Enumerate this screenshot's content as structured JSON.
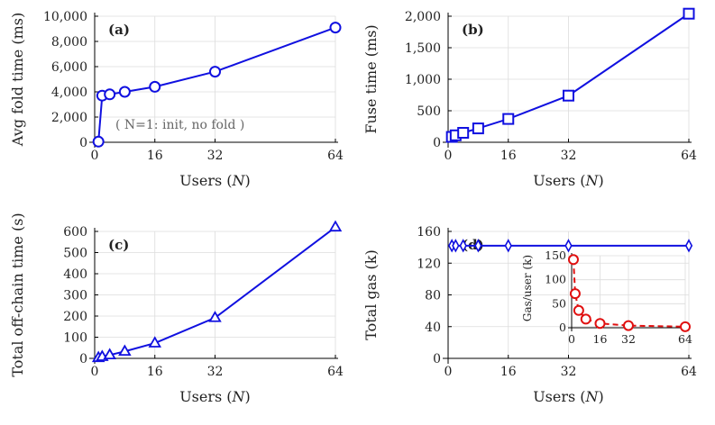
{
  "chart_data": [
    {
      "id": "a",
      "type": "line",
      "panel_label": "(a)",
      "xlabel": "Users (N)",
      "ylabel": "Avg fold time (ms)",
      "xlim": [
        0,
        64
      ],
      "ylim": [
        0,
        10000
      ],
      "xticks": [
        0,
        16,
        32,
        64
      ],
      "yticks": [
        0,
        2000,
        4000,
        6000,
        8000,
        10000
      ],
      "yticklabels": [
        "0",
        "2,000",
        "4,000",
        "6,000",
        "8,000",
        "10,000"
      ],
      "marker": "circle",
      "color": "#1010e0",
      "annotation": "( N=1: init, no fold )",
      "series": [
        {
          "name": "Avg fold time",
          "x": [
            1,
            2,
            4,
            8,
            16,
            32,
            64
          ],
          "y": [
            50,
            3700,
            3800,
            4000,
            4400,
            5600,
            9100
          ]
        }
      ]
    },
    {
      "id": "b",
      "type": "line",
      "panel_label": "(b)",
      "xlabel": "Users (N)",
      "ylabel": "Fuse time (ms)",
      "xlim": [
        0,
        64
      ],
      "ylim": [
        0,
        2000
      ],
      "xticks": [
        0,
        16,
        32,
        64
      ],
      "yticks": [
        0,
        500,
        1000,
        1500,
        2000
      ],
      "yticklabels": [
        "0",
        "500",
        "1,000",
        "1,500",
        "2,000"
      ],
      "marker": "square",
      "color": "#1010e0",
      "series": [
        {
          "name": "Fuse time",
          "x": [
            1,
            2,
            4,
            8,
            16,
            32,
            64
          ],
          "y": [
            85,
            110,
            150,
            220,
            370,
            740,
            2040
          ]
        }
      ]
    },
    {
      "id": "c",
      "type": "line",
      "panel_label": "(c)",
      "xlabel": "Users (N)",
      "ylabel": "Total off-chain time (s)",
      "xlim": [
        0,
        64
      ],
      "ylim": [
        0,
        600
      ],
      "xticks": [
        0,
        16,
        32,
        64
      ],
      "yticks": [
        0,
        100,
        200,
        300,
        400,
        500,
        600
      ],
      "yticklabels": [
        "0",
        "100",
        "200",
        "300",
        "400",
        "500",
        "600"
      ],
      "marker": "triangle",
      "color": "#1010e0",
      "series": [
        {
          "name": "Total off-chain time",
          "x": [
            1,
            2,
            4,
            8,
            16,
            32,
            64
          ],
          "y": [
            3,
            8,
            16,
            33,
            72,
            192,
            620
          ]
        }
      ]
    },
    {
      "id": "d",
      "type": "line",
      "panel_label": "(d)",
      "xlabel": "Users (N)",
      "ylabel": "Total gas (k)",
      "xlim": [
        0,
        64
      ],
      "ylim": [
        0,
        160
      ],
      "xticks": [
        0,
        16,
        32,
        64
      ],
      "yticks": [
        0,
        40,
        80,
        120,
        160
      ],
      "yticklabels": [
        "0",
        "40",
        "80",
        "120",
        "160"
      ],
      "marker": "diamond",
      "color": "#1010e0",
      "series": [
        {
          "name": "Total gas",
          "x": [
            1,
            2,
            4,
            8,
            16,
            32,
            64
          ],
          "y": [
            142,
            142,
            142,
            142,
            142,
            142,
            142
          ]
        }
      ],
      "inset": {
        "type": "line",
        "ylabel": "Gas/user (k)",
        "xlim": [
          0,
          64
        ],
        "ylim": [
          0,
          150
        ],
        "xticks": [
          0,
          16,
          32,
          64
        ],
        "yticks": [
          0,
          50,
          100,
          150
        ],
        "yticklabels": [
          "0",
          "50",
          "100",
          "150"
        ],
        "marker": "circle",
        "color": "#e01010",
        "linestyle": "dashed",
        "series": [
          {
            "name": "Gas per user",
            "x": [
              1,
              2,
              4,
              8,
              16,
              32,
              64
            ],
            "y": [
              142,
              71,
              36,
              18,
              9,
              4.5,
              2.2
            ]
          }
        ]
      }
    }
  ]
}
